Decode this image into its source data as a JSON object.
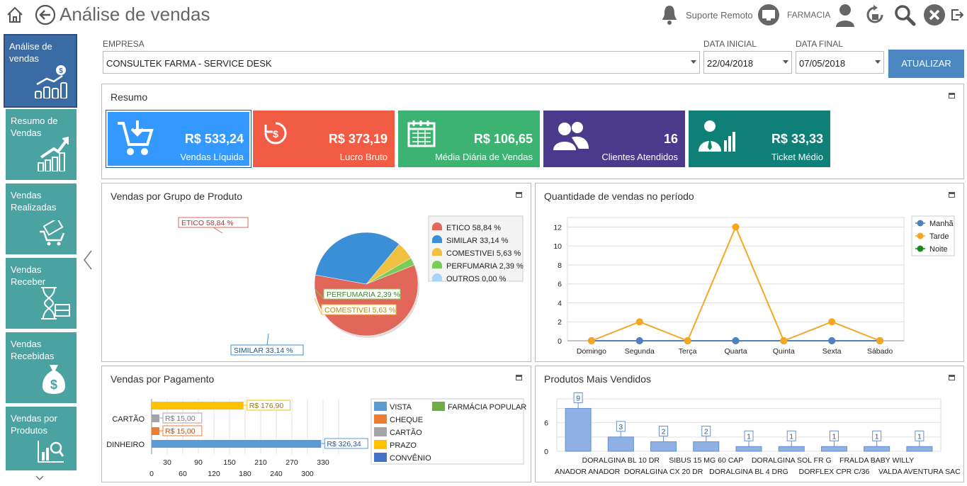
{
  "header": {
    "title": "Análise de vendas",
    "support_label": "Suporte Remoto",
    "user_label": "FARMACIA"
  },
  "sidebar": {
    "items": [
      {
        "label": "Análise de vendas"
      },
      {
        "label": "Resumo de Vendas"
      },
      {
        "label": "Vendas Realizadas"
      },
      {
        "label": "Vendas Receber"
      },
      {
        "label": "Vendas Recebidas"
      },
      {
        "label": "Vendas por Produtos"
      }
    ]
  },
  "filters": {
    "empresa_label": "EMPRESA",
    "empresa_value": "CONSULTEK FARMA - SERVICE DESK",
    "data_inicial_label": "DATA INICIAL",
    "data_inicial_value": "22/04/2018",
    "data_final_label": "DATA FINAL",
    "data_final_value": "07/05/2018",
    "update_button": "ATUALIZAR"
  },
  "resumo": {
    "title": "Resumo",
    "cards": [
      {
        "value": "R$ 533,24",
        "caption": "Vendas Líquida",
        "color": "#3399ff",
        "icon": "cart-download-icon"
      },
      {
        "value": "R$ 373,19",
        "caption": "Lucro Bruto",
        "color": "#f25c45",
        "icon": "money-cycle-icon"
      },
      {
        "value": "R$ 106,65",
        "caption": "Média Diária de Vendas",
        "color": "#3cb371",
        "icon": "calendar-icon"
      },
      {
        "value": "16",
        "caption": "Clientes Atendidos",
        "color": "#4b3a8c",
        "icon": "users-icon"
      },
      {
        "value": "R$ 33,33",
        "caption": "Ticket Médio",
        "color": "#0e8078",
        "icon": "business-chart-icon"
      }
    ]
  },
  "panels": {
    "grupo_title": "Vendas por Grupo de Produto",
    "quantidade_title": "Quantidade de vendas no período",
    "pagamento_title": "Vendas por Pagamento",
    "produtos_title": "Produtos Mais Vendidos"
  },
  "chart_data": [
    {
      "type": "pie",
      "title": "Vendas por Grupo de Produto",
      "slices": [
        {
          "name": "ETICO",
          "value": 58.84,
          "label": "ETICO    58,84 %",
          "legend": "ETICO      58,84 %",
          "color": "#e0675a"
        },
        {
          "name": "SIMILAR",
          "value": 33.14,
          "label": "SIMILAR    33,14 %",
          "legend": "SIMILAR    33,14 %",
          "color": "#3a8fd6"
        },
        {
          "name": "COMESTIVEI",
          "value": 5.63,
          "label": "COMESTIVEI 5,63 %",
          "legend": "COMESTIVEI 5,63 %",
          "color": "#f0c040"
        },
        {
          "name": "PERFUMARIA",
          "value": 2.39,
          "label": "PERFUMARIA 2,39 %",
          "legend": "PERFUMARIA 2,39 %",
          "color": "#7ccc5a"
        },
        {
          "name": "OUTROS",
          "value": 0.0,
          "label": "",
          "legend": "OUTROS 0,00 %",
          "color": "#a8d4f5"
        }
      ],
      "legend_position": "right"
    },
    {
      "type": "line",
      "title": "Quantidade de vendas no período",
      "categories": [
        "Domingo",
        "Segunda",
        "Terça",
        "Quarta",
        "Quinta",
        "Sexta",
        "Sábado"
      ],
      "series": [
        {
          "name": "Manhã",
          "values": [
            0,
            0,
            0,
            0,
            0,
            0,
            0
          ],
          "color": "#4f81bd"
        },
        {
          "name": "Tarde",
          "values": [
            0,
            2,
            0,
            12,
            0,
            2,
            0
          ],
          "color": "#f5a623"
        },
        {
          "name": "Noite",
          "values": [
            0,
            0,
            0,
            0,
            0,
            0,
            0
          ],
          "color": "#1a8a1a"
        }
      ],
      "ylim": [
        0,
        13
      ],
      "yticks": [
        0,
        2,
        4,
        6,
        8,
        10,
        12
      ],
      "grid": true,
      "legend_position": "top-right"
    },
    {
      "type": "bar",
      "orientation": "horizontal",
      "title": "Vendas por Pagamento",
      "groups": [
        "CARTÃO",
        "DINHEIRO"
      ],
      "bars": [
        {
          "group": "CARTÃO",
          "series": "PRAZO",
          "value": 176.9,
          "label": "R$ 176,90"
        },
        {
          "group": "CARTÃO",
          "series": "CARTÃO",
          "value": 15.0,
          "label": "R$ 15,00"
        },
        {
          "group": "CARTÃO",
          "series": "CHEQUE",
          "value": 15.0,
          "label": "R$ 15,00"
        },
        {
          "group": "DINHEIRO",
          "series": "VISTA",
          "value": 326.34,
          "label": "R$ 326,34"
        }
      ],
      "legend": [
        {
          "name": "VISTA",
          "color": "#5b9bd5"
        },
        {
          "name": "CHEQUE",
          "color": "#ed7d31"
        },
        {
          "name": "CARTÃO",
          "color": "#a5a5a5"
        },
        {
          "name": "PRAZO",
          "color": "#ffc000"
        },
        {
          "name": "CONVÊNIO",
          "color": "#4472c4"
        },
        {
          "name": "FARMÁCIA POPULAR",
          "color": "#70ad47"
        }
      ],
      "xlim": [
        0,
        360
      ],
      "xticks_top": [
        30,
        90,
        150,
        210,
        270,
        330
      ],
      "xticks_bottom": [
        0,
        60,
        120,
        180,
        240,
        300
      ],
      "grid": true
    },
    {
      "type": "bar",
      "title": "Produtos Mais Vendidos",
      "categories": [
        "ANADOR ANADOR",
        "DORALGINA BL 10 DR",
        "DORALGINA CX 20 DR",
        "SIBUS 15 MG 60 CAP",
        "DORALGINA BL 4 DRG",
        "DORALGINA SOL FR G",
        "DORFLEX CPR C/36",
        "FRALDA BABY WILLY",
        "VALDA AVENTURA SAC"
      ],
      "values": [
        9,
        3,
        2,
        2,
        1,
        1,
        1,
        1,
        1
      ],
      "ylim": [
        0,
        11
      ],
      "yticks": [
        0,
        6
      ],
      "grid": true
    }
  ]
}
